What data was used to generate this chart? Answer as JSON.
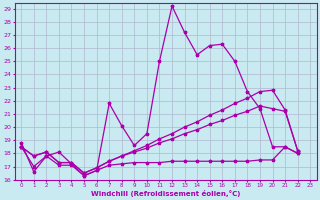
{
  "xlabel": "Windchill (Refroidissement éolien,°C)",
  "xlim": [
    -0.5,
    23.5
  ],
  "ylim": [
    16,
    29.4
  ],
  "yticks": [
    16,
    17,
    18,
    19,
    20,
    21,
    22,
    23,
    24,
    25,
    26,
    27,
    28,
    29
  ],
  "xticks": [
    0,
    1,
    2,
    3,
    4,
    5,
    6,
    7,
    8,
    9,
    10,
    11,
    12,
    13,
    14,
    15,
    16,
    17,
    18,
    19,
    20,
    21,
    22,
    23
  ],
  "background_color": "#c8eaf0",
  "grid_color": "#b0b8d0",
  "line_color": "#aa00aa",
  "s1_x": [
    0,
    1,
    2,
    3,
    4,
    5,
    6,
    7,
    8,
    9,
    10,
    11,
    12,
    13,
    14,
    15,
    16,
    17,
    18,
    19,
    20,
    21,
    22
  ],
  "s1_y": [
    18.8,
    16.6,
    17.8,
    18.1,
    17.2,
    16.3,
    16.7,
    21.8,
    20.1,
    18.6,
    19.5,
    25.0,
    29.2,
    27.2,
    25.5,
    26.2,
    26.3,
    25.0,
    22.7,
    21.4,
    18.5,
    18.5,
    18.0
  ],
  "s2_x": [
    0,
    1,
    2,
    3,
    4,
    5,
    6,
    7,
    8,
    9,
    10,
    11,
    12,
    13,
    14,
    15,
    16,
    17,
    18,
    19,
    20,
    21,
    22
  ],
  "s2_y": [
    18.5,
    17.8,
    18.1,
    17.3,
    17.3,
    16.5,
    16.9,
    17.4,
    17.8,
    18.2,
    18.6,
    19.1,
    19.5,
    20.0,
    20.4,
    20.9,
    21.3,
    21.8,
    22.2,
    22.7,
    22.8,
    21.3,
    18.2
  ],
  "s3_x": [
    0,
    1,
    2,
    3,
    4,
    5,
    6,
    7,
    8,
    9,
    10,
    11,
    12,
    13,
    14,
    15,
    16,
    17,
    18,
    19,
    20,
    21,
    22
  ],
  "s3_y": [
    18.5,
    17.8,
    18.1,
    17.3,
    17.3,
    16.5,
    16.9,
    17.4,
    17.8,
    18.1,
    18.4,
    18.8,
    19.1,
    19.5,
    19.8,
    20.2,
    20.5,
    20.9,
    21.2,
    21.6,
    21.4,
    21.2,
    18.2
  ],
  "s4_x": [
    0,
    1,
    2,
    3,
    4,
    5,
    6,
    7,
    8,
    9,
    10,
    11,
    12,
    13,
    14,
    15,
    16,
    17,
    18,
    19,
    20,
    21,
    22
  ],
  "s4_y": [
    18.5,
    17.0,
    17.8,
    17.1,
    17.1,
    16.3,
    16.7,
    17.1,
    17.2,
    17.3,
    17.3,
    17.3,
    17.4,
    17.4,
    17.4,
    17.4,
    17.4,
    17.4,
    17.4,
    17.5,
    17.5,
    18.5,
    18.0
  ]
}
